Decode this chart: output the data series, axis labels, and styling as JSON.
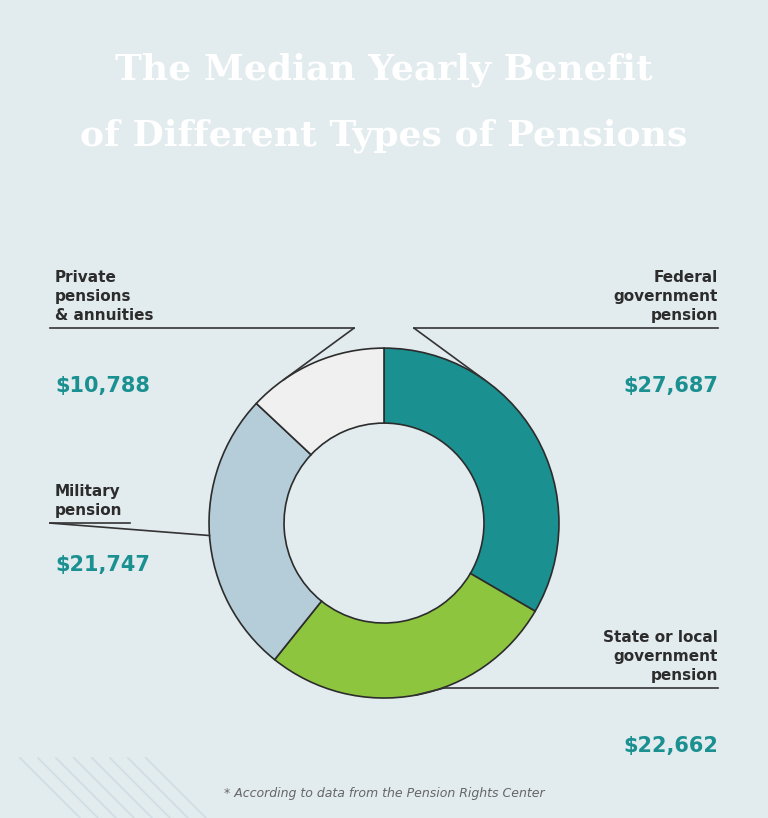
{
  "title_line1": "The Median Yearly Benefit",
  "title_line2": "of Different Types of Pensions",
  "title_bg_color": "#127f7f",
  "title_text_color": "#ffffff",
  "body_bg_color": "#e2ebee",
  "values_raw": [
    27687,
    22662,
    21747,
    10788
  ],
  "colors": [
    "#1a9090",
    "#8dc53f",
    "#b5cdd8",
    "#f0f0f0"
  ],
  "value_color": "#1a9090",
  "label_color": "#2c2c2c",
  "wedge_edge_color": "#2c2c2c",
  "wedge_linewidth": 1.2,
  "footnote": "* According to data from the Pension Rights Center",
  "labels": [
    "Federal\ngovernment\npension",
    "State or local\ngovernment\npension",
    "Military\npension",
    "Private\npensions\n& annuities"
  ],
  "formatted_values": [
    "$27,687",
    "$22,662",
    "$21,747",
    "$10,788"
  ]
}
